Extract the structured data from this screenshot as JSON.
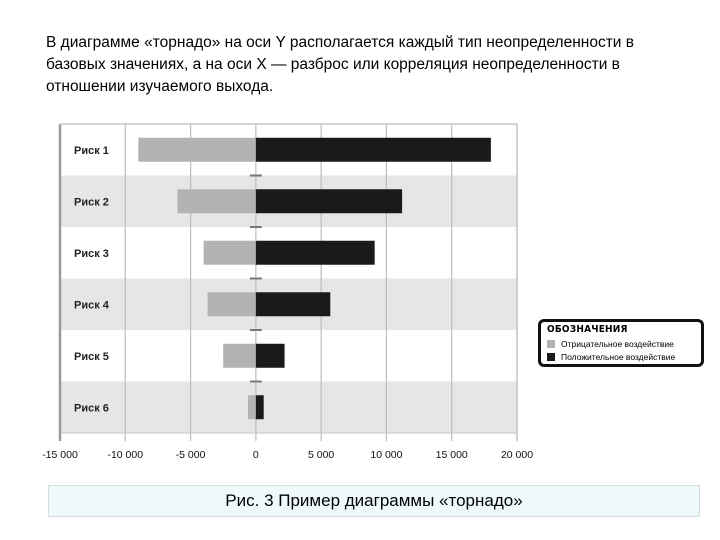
{
  "intro_text": "В диаграмме «торнадо» на оси Y располагается каждый тип неопределенности в базовых значениях, а на оси X — разброс или корреляция неопределенности в отношении изучаемого выхода.",
  "caption": "Рис. 3  Пример диаграммы «торнадо»",
  "colors": {
    "negative": "#b3b3b3",
    "positive": "#1a1a1a",
    "band": "#e6e6e6",
    "grid": "#bdbdbd"
  },
  "chart_data": {
    "type": "bar",
    "orientation": "horizontal",
    "categories": [
      "Риск 1",
      "Риск 2",
      "Риск 3",
      "Риск 4",
      "Риск 5",
      "Риск 6"
    ],
    "series": [
      {
        "name": "Отрицательное воздействие",
        "values": [
          -9000,
          -6000,
          -4000,
          -3700,
          -2500,
          -600
        ]
      },
      {
        "name": "Положительное воздействие",
        "values": [
          18000,
          11200,
          9100,
          5700,
          2200,
          600
        ]
      }
    ],
    "x_ticks": [
      "-15 000",
      "-10 000",
      "-5 000",
      "0",
      "5 000",
      "10 000",
      "15 000",
      "20 000"
    ],
    "x_tick_values": [
      -15000,
      -10000,
      -5000,
      0,
      5000,
      10000,
      15000,
      20000
    ],
    "xlim": [
      -15000,
      20000
    ],
    "grid": true,
    "legend": {
      "title": "ОБОЗНАЧЕНИЯ",
      "placement": "right"
    }
  }
}
